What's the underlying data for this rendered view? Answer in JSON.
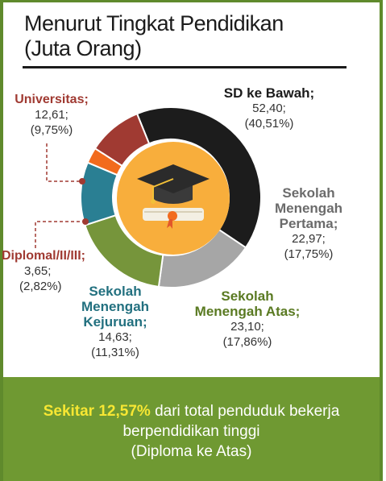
{
  "title_line1": "Menurut Tingkat Pendidikan",
  "title_line2": "(Juta Orang)",
  "chart_data": {
    "type": "pie",
    "title": "Menurut Tingkat Pendidikan (Juta Orang)",
    "donut": true,
    "slices": [
      {
        "name": "SD ke Bawah;",
        "value": 52.4,
        "value_text": "52,40;",
        "pct": "(40,51%)",
        "color": "#1c1c1c"
      },
      {
        "name": "Sekolah Menengah Pertama;",
        "value": 22.97,
        "value_text": "22,97;",
        "pct": "(17,75%)",
        "color": "#a6a6a6"
      },
      {
        "name": "Sekolah Menengah Atas;",
        "value": 23.1,
        "value_text": "23,10;",
        "pct": "(17,86%)",
        "color": "#76953b"
      },
      {
        "name": "Sekolah Menengah Kejuruan;",
        "value": 14.63,
        "value_text": "14,63;",
        "pct": "(11,31%)",
        "color": "#2a7f93"
      },
      {
        "name": "Diplomal/II/III;",
        "value": 3.65,
        "value_text": "3,65;",
        "pct": "(2,82%)",
        "color": "#f26b1d"
      },
      {
        "name": "Universitas;",
        "value": 12.61,
        "value_text": "12,61;",
        "pct": "(9,75%)",
        "color": "#a03a32"
      }
    ]
  },
  "labels": {
    "sd": {
      "lines": [
        "SD ke Bawah;"
      ],
      "value": "52,40;",
      "pct": "(40,51%)",
      "color": "#1b1b1b"
    },
    "smp": {
      "lines": [
        "Sekolah",
        "Menengah",
        "Pertama;"
      ],
      "value": "22,97;",
      "pct": "(17,75%)",
      "color": "#6b6b6b"
    },
    "sma": {
      "lines": [
        "Sekolah",
        "Menengah Atas;"
      ],
      "value": "23,10;",
      "pct": "(17,86%)",
      "color": "#5a7a22"
    },
    "smk": {
      "lines": [
        "Sekolah",
        "Menengah",
        "Kejuruan;"
      ],
      "value": "14,63;",
      "pct": "(11,31%)",
      "color": "#22707f"
    },
    "diploma": {
      "lines": [
        "Diplomal/II/III;"
      ],
      "value": "3,65;",
      "pct": "(2,82%)",
      "color": "#a03a32"
    },
    "univ": {
      "lines": [
        "Universitas;"
      ],
      "value": "12,61;",
      "pct": "(9,75%)",
      "color": "#a03a32"
    }
  },
  "footer": {
    "highlight": "Sekitar 12,57%",
    "line1_rest": " dari total penduduk bekerja",
    "line2": "berpendidikan tinggi",
    "line3": "(Diploma ke Atas)"
  },
  "icon": "graduation-cap-diploma-icon"
}
